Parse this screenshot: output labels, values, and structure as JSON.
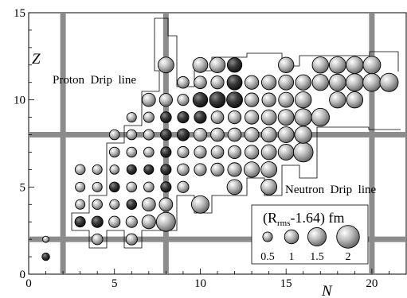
{
  "chart_data": {
    "type": "scatter",
    "xlabel": "N",
    "ylabel": "Z",
    "xlim": [
      0,
      22
    ],
    "ylim": [
      0,
      15
    ],
    "x_ticks": [
      0,
      5,
      10,
      15,
      20
    ],
    "y_ticks": [
      0,
      5,
      10,
      15
    ],
    "magic_numbers": {
      "N": [
        2,
        8,
        20
      ],
      "Z": [
        2,
        8
      ]
    },
    "annotations": {
      "proton_drip": "Proton  Drip  line",
      "neutron_drip": "Neutron  Drip  line"
    },
    "legend": {
      "title_prefix": "(R",
      "title_sub": "rms",
      "title_suffix": "-1.64) fm",
      "placement": "bottom-right",
      "entries": [
        {
          "label": "0.5",
          "value": 0.5
        },
        {
          "label": "1",
          "value": 1
        },
        {
          "label": "1.5",
          "value": 1.5
        },
        {
          "label": "2",
          "value": 2
        }
      ]
    },
    "points": [
      {
        "N": 1,
        "Z": 1,
        "v": 0.3,
        "s": "dark"
      },
      {
        "N": 1,
        "Z": 2,
        "v": 0.15,
        "s": "light"
      },
      {
        "N": 3,
        "Z": 3,
        "v": 0.65,
        "s": "dark"
      },
      {
        "N": 4,
        "Z": 3,
        "v": 0.75,
        "s": "dark"
      },
      {
        "N": 5,
        "Z": 3,
        "v": 0.75,
        "s": "light"
      },
      {
        "N": 6,
        "Z": 3,
        "v": 0.75,
        "s": "light"
      },
      {
        "N": 7,
        "Z": 3,
        "v": 1.05,
        "s": "light"
      },
      {
        "N": 8,
        "Z": 3,
        "v": 1.7,
        "s": "light"
      },
      {
        "N": 4,
        "Z": 2,
        "v": 0.7,
        "s": "light"
      },
      {
        "N": 6,
        "Z": 2,
        "v": 0.75,
        "s": "light"
      },
      {
        "N": 3,
        "Z": 4,
        "v": 0.55,
        "s": "light"
      },
      {
        "N": 4,
        "Z": 4,
        "v": 0.6,
        "s": "light"
      },
      {
        "N": 5,
        "Z": 4,
        "v": 0.55,
        "s": "light"
      },
      {
        "N": 6,
        "Z": 4,
        "v": 0.6,
        "s": "dark"
      },
      {
        "N": 7,
        "Z": 4,
        "v": 1.0,
        "s": "light"
      },
      {
        "N": 8,
        "Z": 4,
        "v": 1.0,
        "s": "light"
      },
      {
        "N": 10,
        "Z": 4,
        "v": 1.5,
        "s": "light"
      },
      {
        "N": 3,
        "Z": 5,
        "v": 0.55,
        "s": "light"
      },
      {
        "N": 4,
        "Z": 5,
        "v": 0.55,
        "s": "light"
      },
      {
        "N": 5,
        "Z": 5,
        "v": 0.6,
        "s": "dark"
      },
      {
        "N": 6,
        "Z": 5,
        "v": 0.6,
        "s": "light"
      },
      {
        "N": 7,
        "Z": 5,
        "v": 0.6,
        "s": "light"
      },
      {
        "N": 8,
        "Z": 5,
        "v": 0.65,
        "s": "dark"
      },
      {
        "N": 9,
        "Z": 5,
        "v": 0.75,
        "s": "light"
      },
      {
        "N": 3,
        "Z": 6,
        "v": 0.6,
        "s": "light"
      },
      {
        "N": 4,
        "Z": 6,
        "v": 0.55,
        "s": "light"
      },
      {
        "N": 5,
        "Z": 6,
        "v": 0.5,
        "s": "light"
      },
      {
        "N": 6,
        "Z": 6,
        "v": 0.55,
        "s": "dark"
      },
      {
        "N": 7,
        "Z": 6,
        "v": 0.55,
        "s": "dark"
      },
      {
        "N": 8,
        "Z": 6,
        "v": 0.65,
        "s": "dark"
      },
      {
        "N": 9,
        "Z": 6,
        "v": 0.8,
        "s": "light"
      },
      {
        "N": 10,
        "Z": 6,
        "v": 0.85,
        "s": "light"
      },
      {
        "N": 11,
        "Z": 6,
        "v": 0.95,
        "s": "light"
      },
      {
        "N": 12,
        "Z": 6,
        "v": 1.05,
        "s": "light"
      },
      {
        "N": 13,
        "Z": 6,
        "v": 1.25,
        "s": "light"
      },
      {
        "N": 14,
        "Z": 6,
        "v": 1.3,
        "s": "light"
      },
      {
        "N": 12,
        "Z": 5,
        "v": 1.2,
        "s": "light"
      },
      {
        "N": 14,
        "Z": 5,
        "v": 1.3,
        "s": "light"
      },
      {
        "N": 5,
        "Z": 7,
        "v": 0.6,
        "s": "light"
      },
      {
        "N": 6,
        "Z": 7,
        "v": 0.6,
        "s": "light"
      },
      {
        "N": 7,
        "Z": 7,
        "v": 0.6,
        "s": "light"
      },
      {
        "N": 8,
        "Z": 7,
        "v": 0.65,
        "s": "dark"
      },
      {
        "N": 9,
        "Z": 7,
        "v": 0.75,
        "s": "light"
      },
      {
        "N": 10,
        "Z": 7,
        "v": 0.85,
        "s": "light"
      },
      {
        "N": 11,
        "Z": 7,
        "v": 0.9,
        "s": "light"
      },
      {
        "N": 12,
        "Z": 7,
        "v": 0.95,
        "s": "light"
      },
      {
        "N": 13,
        "Z": 7,
        "v": 1.05,
        "s": "light"
      },
      {
        "N": 14,
        "Z": 7,
        "v": 1.2,
        "s": "light"
      },
      {
        "N": 15,
        "Z": 7,
        "v": 1.3,
        "s": "light"
      },
      {
        "N": 16,
        "Z": 7,
        "v": 1.75,
        "s": "light"
      },
      {
        "N": 5,
        "Z": 8,
        "v": 0.6,
        "s": "light"
      },
      {
        "N": 6,
        "Z": 8,
        "v": 0.6,
        "s": "light"
      },
      {
        "N": 7,
        "Z": 8,
        "v": 0.65,
        "s": "light"
      },
      {
        "N": 8,
        "Z": 8,
        "v": 0.7,
        "s": "dark"
      },
      {
        "N": 9,
        "Z": 8,
        "v": 0.85,
        "s": "dark"
      },
      {
        "N": 10,
        "Z": 8,
        "v": 0.95,
        "s": "light"
      },
      {
        "N": 11,
        "Z": 8,
        "v": 1.0,
        "s": "light"
      },
      {
        "N": 12,
        "Z": 8,
        "v": 1.0,
        "s": "light"
      },
      {
        "N": 13,
        "Z": 8,
        "v": 1.1,
        "s": "light"
      },
      {
        "N": 14,
        "Z": 8,
        "v": 1.2,
        "s": "light"
      },
      {
        "N": 15,
        "Z": 8,
        "v": 1.3,
        "s": "light"
      },
      {
        "N": 16,
        "Z": 8,
        "v": 1.45,
        "s": "light"
      },
      {
        "N": 6,
        "Z": 9,
        "v": 0.55,
        "s": "light"
      },
      {
        "N": 7,
        "Z": 9,
        "v": 0.65,
        "s": "light"
      },
      {
        "N": 8,
        "Z": 9,
        "v": 0.7,
        "s": "dark"
      },
      {
        "N": 9,
        "Z": 9,
        "v": 0.75,
        "s": "dark"
      },
      {
        "N": 10,
        "Z": 9,
        "v": 0.85,
        "s": "dark"
      },
      {
        "N": 11,
        "Z": 9,
        "v": 0.9,
        "s": "light"
      },
      {
        "N": 12,
        "Z": 9,
        "v": 0.95,
        "s": "light"
      },
      {
        "N": 13,
        "Z": 9,
        "v": 1.05,
        "s": "light"
      },
      {
        "N": 14,
        "Z": 9,
        "v": 1.2,
        "s": "light"
      },
      {
        "N": 15,
        "Z": 9,
        "v": 1.3,
        "s": "light"
      },
      {
        "N": 16,
        "Z": 9,
        "v": 1.45,
        "s": "light"
      },
      {
        "N": 17,
        "Z": 9,
        "v": 1.55,
        "s": "light"
      },
      {
        "N": 7,
        "Z": 10,
        "v": 1.0,
        "s": "light"
      },
      {
        "N": 8,
        "Z": 10,
        "v": 0.95,
        "s": "light"
      },
      {
        "N": 9,
        "Z": 10,
        "v": 0.75,
        "s": "light"
      },
      {
        "N": 10,
        "Z": 10,
        "v": 1.15,
        "s": "dark"
      },
      {
        "N": 11,
        "Z": 10,
        "v": 1.3,
        "s": "dark"
      },
      {
        "N": 12,
        "Z": 10,
        "v": 1.3,
        "s": "dark"
      },
      {
        "N": 13,
        "Z": 10,
        "v": 1.05,
        "s": "light"
      },
      {
        "N": 14,
        "Z": 10,
        "v": 1.05,
        "s": "light"
      },
      {
        "N": 15,
        "Z": 10,
        "v": 1.2,
        "s": "light"
      },
      {
        "N": 16,
        "Z": 10,
        "v": 1.35,
        "s": "light"
      },
      {
        "N": 18,
        "Z": 10,
        "v": 1.35,
        "s": "light"
      },
      {
        "N": 19,
        "Z": 10,
        "v": 1.35,
        "s": "light"
      },
      {
        "N": 9,
        "Z": 11,
        "v": 0.8,
        "s": "light"
      },
      {
        "N": 10,
        "Z": 11,
        "v": 0.9,
        "s": "light"
      },
      {
        "N": 11,
        "Z": 11,
        "v": 0.95,
        "s": "light"
      },
      {
        "N": 12,
        "Z": 11,
        "v": 1.2,
        "s": "dark"
      },
      {
        "N": 13,
        "Z": 11,
        "v": 1.05,
        "s": "light"
      },
      {
        "N": 14,
        "Z": 11,
        "v": 1.15,
        "s": "light"
      },
      {
        "N": 15,
        "Z": 11,
        "v": 1.2,
        "s": "light"
      },
      {
        "N": 16,
        "Z": 11,
        "v": 1.25,
        "s": "light"
      },
      {
        "N": 17,
        "Z": 11,
        "v": 1.35,
        "s": "light"
      },
      {
        "N": 18,
        "Z": 11,
        "v": 1.4,
        "s": "light"
      },
      {
        "N": 19,
        "Z": 11,
        "v": 1.5,
        "s": "light"
      },
      {
        "N": 20,
        "Z": 11,
        "v": 1.55,
        "s": "light"
      },
      {
        "N": 21,
        "Z": 11,
        "v": 1.6,
        "s": "light"
      },
      {
        "N": 8,
        "Z": 12,
        "v": 1.3,
        "s": "light"
      },
      {
        "N": 10,
        "Z": 12,
        "v": 1.2,
        "s": "light"
      },
      {
        "N": 11,
        "Z": 12,
        "v": 1.25,
        "s": "light"
      },
      {
        "N": 12,
        "Z": 12,
        "v": 1.15,
        "s": "dark"
      },
      {
        "N": 15,
        "Z": 12,
        "v": 1.25,
        "s": "light"
      },
      {
        "N": 17,
        "Z": 12,
        "v": 1.35,
        "s": "light"
      },
      {
        "N": 18,
        "Z": 12,
        "v": 1.4,
        "s": "light"
      },
      {
        "N": 19,
        "Z": 12,
        "v": 1.45,
        "s": "light"
      },
      {
        "N": 20,
        "Z": 12,
        "v": 1.5,
        "s": "light"
      }
    ]
  }
}
